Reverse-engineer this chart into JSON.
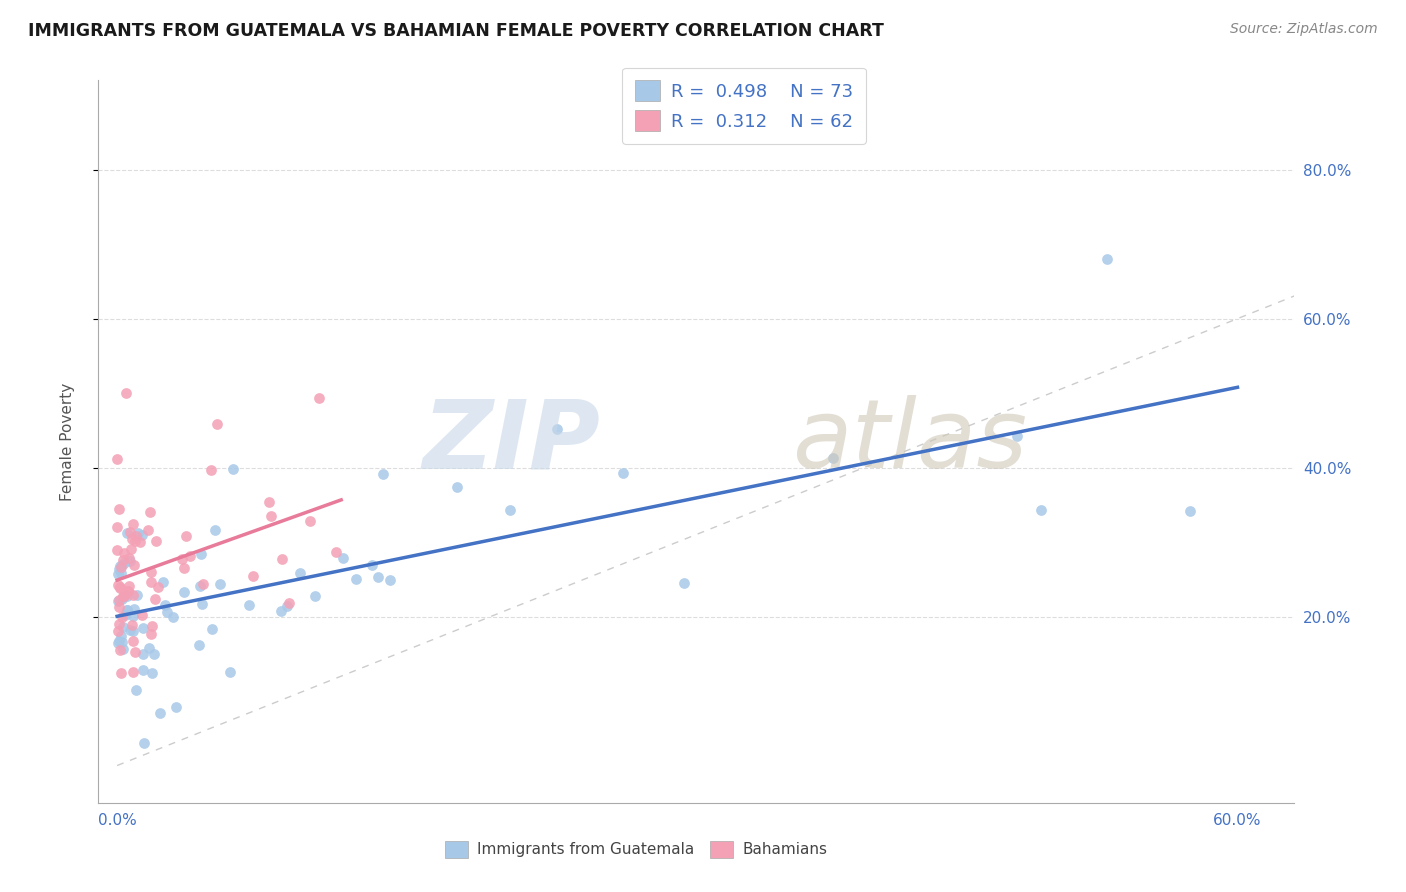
{
  "title": "IMMIGRANTS FROM GUATEMALA VS BAHAMIAN FEMALE POVERTY CORRELATION CHART",
  "source": "Source: ZipAtlas.com",
  "ylabel": "Female Poverty",
  "color_blue_scatter": "#a8c8e8",
  "color_pink_scatter": "#f4a0b5",
  "color_blue_line": "#4472c4",
  "color_pink_line": "#e87a9a",
  "color_blue_text": "#4472c4",
  "color_diag": "#cccccc",
  "legend_label1": "Immigrants from Guatemala",
  "legend_label2": "Bahamians",
  "R_blue": 0.498,
  "N_blue": 73,
  "R_pink": 0.312,
  "N_pink": 62,
  "xlim": [
    -0.01,
    0.63
  ],
  "ylim": [
    -0.05,
    0.92
  ],
  "y_ticks": [
    0.2,
    0.4,
    0.6,
    0.8
  ],
  "grid_color": "#dddddd",
  "watermark_color_zip": "#c8d8e8",
  "watermark_color_atlas": "#d0c8b8"
}
